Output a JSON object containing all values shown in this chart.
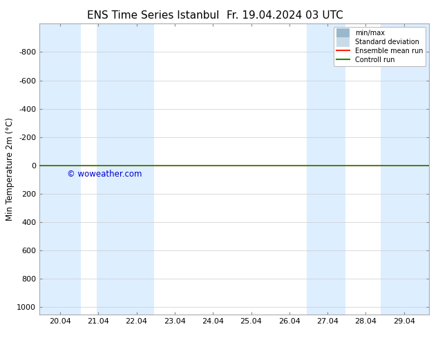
{
  "title_left": "ENS Time Series Istanbul",
  "title_right": "Fr. 19.04.2024 03 UTC",
  "ylabel": "Min Temperature 2m (°C)",
  "ylim_top": -1000,
  "ylim_bottom": 1050,
  "yticks": [
    -800,
    -600,
    -400,
    -200,
    0,
    200,
    400,
    600,
    800,
    1000
  ],
  "xlim": [
    19.5,
    29.7
  ],
  "x_tick_labels": [
    "20.04",
    "21.04",
    "22.04",
    "23.04",
    "24.04",
    "25.04",
    "26.04",
    "27.04",
    "28.04",
    "29.04"
  ],
  "x_tick_positions": [
    20.04,
    21.04,
    22.04,
    23.04,
    24.04,
    25.04,
    26.04,
    27.04,
    28.04,
    29.04
  ],
  "shaded_regions": [
    [
      19.5,
      20.58
    ],
    [
      21.0,
      22.5
    ],
    [
      26.5,
      27.5
    ],
    [
      28.42,
      29.7
    ]
  ],
  "shaded_color": "#ddeeff",
  "control_run_y": 0,
  "ensemble_mean_y": 0,
  "control_run_color": "#228800",
  "ensemble_mean_color": "#ff2200",
  "minmax_line_color": "#9ab8cc",
  "stddev_fill_color": "#c8dce8",
  "watermark": "© woweather.com",
  "watermark_color": "#0000cc",
  "legend_labels": [
    "min/max",
    "Standard deviation",
    "Ensemble mean run",
    "Controll run"
  ],
  "legend_colors_line": [
    "#9ab8cc",
    "#c8dce8",
    "#ff2200",
    "#228800"
  ],
  "background_color": "#ffffff",
  "plot_bg_color": "#ffffff",
  "title_fontsize": 11,
  "axis_label_fontsize": 8.5,
  "tick_fontsize": 8
}
